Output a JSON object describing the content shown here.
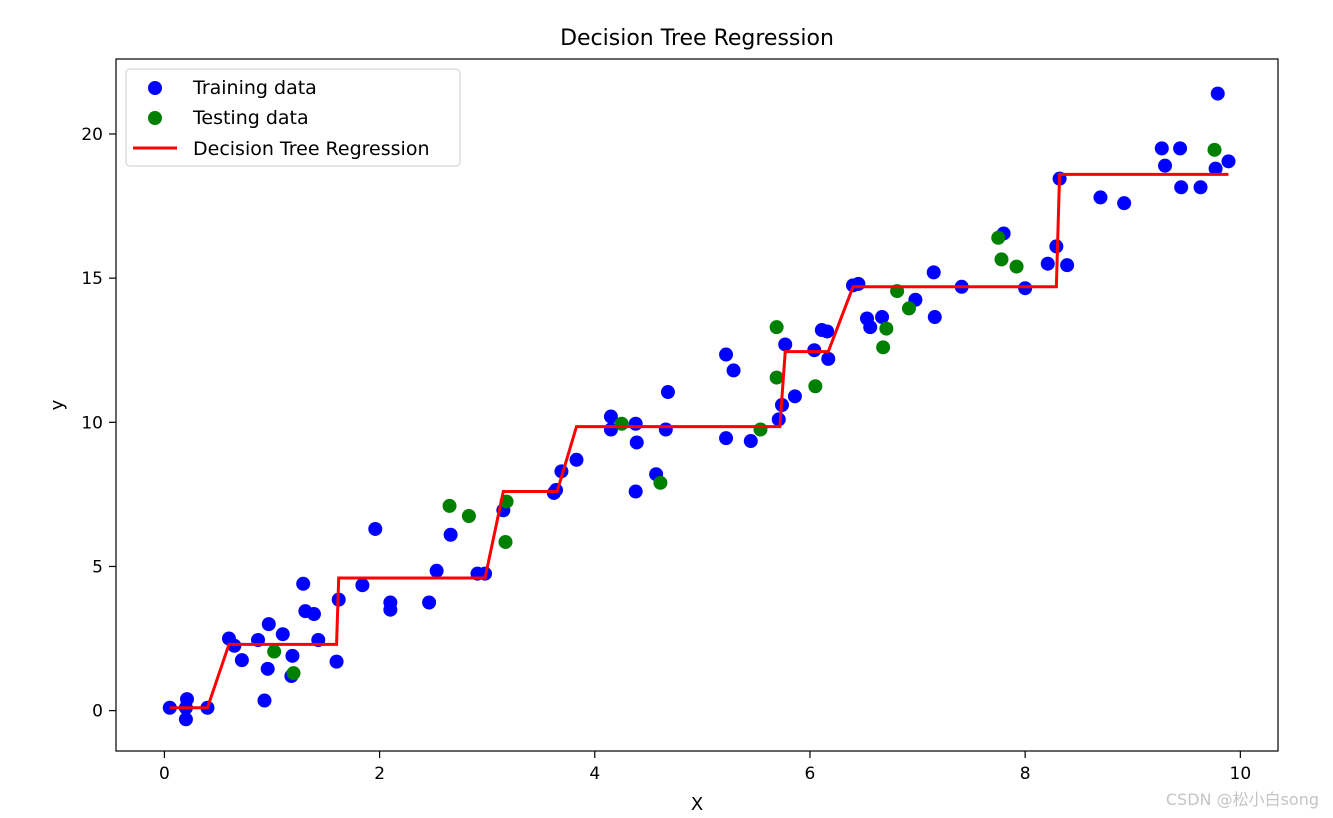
{
  "chart_data": {
    "type": "scatter",
    "title": "Decision Tree Regression",
    "xlabel": "X",
    "ylabel": "y",
    "xlim": [
      -0.45,
      10.35
    ],
    "ylim": [
      -1.4,
      22.6
    ],
    "xticks": [
      0,
      2,
      4,
      6,
      8,
      10
    ],
    "yticks": [
      0,
      5,
      10,
      15,
      20
    ],
    "legend_position": "upper-left",
    "series": [
      {
        "name": "Training data",
        "kind": "scatter",
        "color": "#0000ff",
        "points": [
          [
            0.05,
            0.1
          ],
          [
            0.2,
            0.1
          ],
          [
            0.21,
            0.4
          ],
          [
            0.2,
            -0.3
          ],
          [
            0.4,
            0.1
          ],
          [
            0.6,
            2.5
          ],
          [
            0.65,
            2.25
          ],
          [
            0.72,
            1.75
          ],
          [
            0.87,
            2.45
          ],
          [
            0.93,
            0.35
          ],
          [
            0.96,
            1.45
          ],
          [
            0.97,
            3.0
          ],
          [
            1.1,
            2.65
          ],
          [
            1.18,
            1.2
          ],
          [
            1.19,
            1.9
          ],
          [
            1.29,
            4.4
          ],
          [
            1.31,
            3.45
          ],
          [
            1.39,
            3.35
          ],
          [
            1.43,
            2.45
          ],
          [
            1.6,
            1.7
          ],
          [
            1.62,
            3.85
          ],
          [
            1.96,
            6.3
          ],
          [
            1.84,
            4.35
          ],
          [
            2.1,
            3.5
          ],
          [
            2.1,
            3.75
          ],
          [
            2.46,
            3.75
          ],
          [
            2.53,
            4.85
          ],
          [
            2.66,
            6.1
          ],
          [
            2.91,
            4.75
          ],
          [
            2.98,
            4.75
          ],
          [
            3.15,
            6.95
          ],
          [
            3.62,
            7.55
          ],
          [
            3.64,
            7.65
          ],
          [
            3.69,
            8.3
          ],
          [
            3.83,
            8.7
          ],
          [
            4.15,
            10.2
          ],
          [
            4.15,
            9.75
          ],
          [
            4.38,
            9.95
          ],
          [
            4.38,
            7.6
          ],
          [
            4.39,
            9.3
          ],
          [
            4.57,
            8.2
          ],
          [
            4.66,
            9.75
          ],
          [
            4.68,
            11.05
          ],
          [
            5.22,
            12.35
          ],
          [
            5.22,
            9.45
          ],
          [
            5.29,
            11.8
          ],
          [
            5.45,
            9.35
          ],
          [
            5.71,
            10.1
          ],
          [
            5.74,
            10.6
          ],
          [
            5.77,
            12.7
          ],
          [
            5.86,
            10.9
          ],
          [
            6.04,
            12.5
          ],
          [
            6.11,
            13.2
          ],
          [
            6.16,
            13.15
          ],
          [
            6.17,
            12.2
          ],
          [
            6.4,
            14.75
          ],
          [
            6.45,
            14.8
          ],
          [
            6.53,
            13.6
          ],
          [
            6.56,
            13.3
          ],
          [
            6.67,
            13.65
          ],
          [
            6.98,
            14.25
          ],
          [
            7.15,
            15.2
          ],
          [
            7.16,
            13.65
          ],
          [
            7.41,
            14.7
          ],
          [
            7.8,
            16.55
          ],
          [
            8.0,
            14.65
          ],
          [
            8.21,
            15.5
          ],
          [
            8.29,
            16.1
          ],
          [
            8.32,
            18.45
          ],
          [
            8.39,
            15.45
          ],
          [
            8.7,
            17.8
          ],
          [
            8.92,
            17.6
          ],
          [
            9.27,
            19.5
          ],
          [
            9.3,
            18.9
          ],
          [
            9.44,
            19.5
          ],
          [
            9.45,
            18.15
          ],
          [
            9.63,
            18.15
          ],
          [
            9.77,
            18.8
          ],
          [
            9.79,
            21.4
          ],
          [
            9.89,
            19.05
          ]
        ]
      },
      {
        "name": "Testing data",
        "kind": "scatter",
        "color": "#008000",
        "points": [
          [
            1.02,
            2.05
          ],
          [
            1.2,
            1.3
          ],
          [
            2.65,
            7.1
          ],
          [
            2.83,
            6.75
          ],
          [
            3.18,
            7.25
          ],
          [
            3.17,
            5.85
          ],
          [
            4.25,
            9.95
          ],
          [
            4.61,
            7.9
          ],
          [
            5.54,
            9.75
          ],
          [
            5.69,
            13.3
          ],
          [
            5.69,
            11.55
          ],
          [
            6.05,
            11.25
          ],
          [
            6.68,
            12.6
          ],
          [
            6.71,
            13.25
          ],
          [
            6.81,
            14.55
          ],
          [
            6.92,
            13.95
          ],
          [
            7.75,
            16.4
          ],
          [
            7.78,
            15.65
          ],
          [
            7.92,
            15.4
          ],
          [
            9.76,
            19.45
          ]
        ]
      },
      {
        "name": "Decision Tree Regression",
        "kind": "line",
        "color": "#ff0000",
        "points": [
          [
            0.05,
            0.1
          ],
          [
            0.4,
            0.1
          ],
          [
            0.6,
            2.3
          ],
          [
            1.6,
            2.3
          ],
          [
            1.62,
            4.6
          ],
          [
            2.98,
            4.6
          ],
          [
            3.15,
            7.6
          ],
          [
            3.65,
            7.6
          ],
          [
            3.83,
            9.85
          ],
          [
            5.72,
            9.85
          ],
          [
            5.77,
            12.45
          ],
          [
            6.17,
            12.45
          ],
          [
            6.4,
            14.7
          ],
          [
            8.29,
            14.7
          ],
          [
            8.32,
            18.6
          ],
          [
            9.89,
            18.6
          ]
        ]
      }
    ]
  },
  "watermark": "CSDN @松小白song"
}
